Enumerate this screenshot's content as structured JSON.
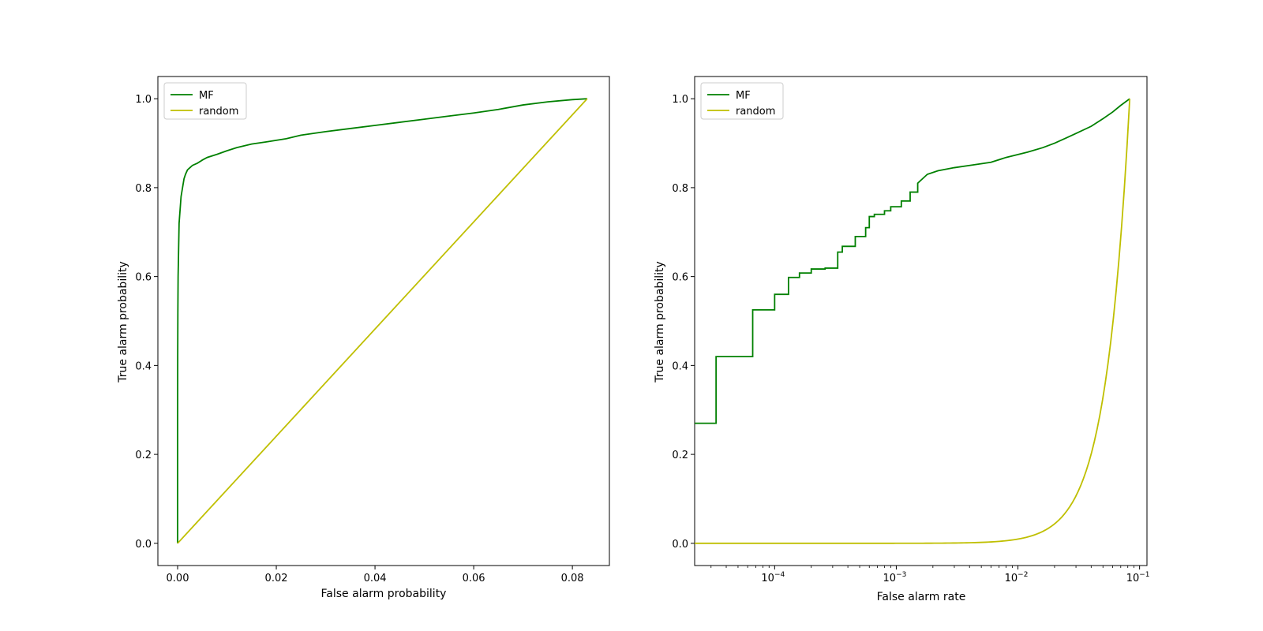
{
  "chart_data": [
    {
      "type": "line",
      "xlabel": "False alarm probability",
      "ylabel": "True alarm probability",
      "xscale": "linear",
      "xlim": [
        -0.004,
        0.0875
      ],
      "ylim": [
        -0.05,
        1.05
      ],
      "xticks": [
        0.0,
        0.02,
        0.04,
        0.06,
        0.08
      ],
      "xtick_labels": [
        "0.00",
        "0.02",
        "0.04",
        "0.06",
        "0.08"
      ],
      "yticks": [
        0.0,
        0.2,
        0.4,
        0.6,
        0.8,
        1.0
      ],
      "ytick_labels": [
        "0.0",
        "0.2",
        "0.4",
        "0.6",
        "0.8",
        "1.0"
      ],
      "legend": "top-left",
      "grid": false,
      "series": [
        {
          "name": "MF",
          "color": "#008000",
          "x": [
            0.0,
            0.0,
            2e-05,
            5e-05,
            0.0001,
            0.0002,
            0.0003,
            0.0005,
            0.0007,
            0.001,
            0.0013,
            0.0016,
            0.002,
            0.0025,
            0.003,
            0.004,
            0.005,
            0.006,
            0.008,
            0.01,
            0.012,
            0.015,
            0.018,
            0.022,
            0.025,
            0.03,
            0.035,
            0.04,
            0.045,
            0.05,
            0.055,
            0.06,
            0.065,
            0.07,
            0.075,
            0.08,
            0.083
          ],
          "y": [
            0.0,
            0.27,
            0.42,
            0.52,
            0.6,
            0.66,
            0.72,
            0.75,
            0.78,
            0.8,
            0.82,
            0.83,
            0.84,
            0.845,
            0.85,
            0.855,
            0.862,
            0.868,
            0.875,
            0.883,
            0.89,
            0.898,
            0.903,
            0.91,
            0.918,
            0.926,
            0.933,
            0.94,
            0.947,
            0.954,
            0.961,
            0.968,
            0.976,
            0.986,
            0.993,
            0.998,
            1.0
          ]
        },
        {
          "name": "random",
          "color": "#bfbf00",
          "x": [
            0.0,
            0.083
          ],
          "y": [
            0.0,
            1.0
          ]
        }
      ]
    },
    {
      "type": "line",
      "xlabel": "False alarm rate",
      "ylabel": "True alarm probability",
      "xscale": "log",
      "xlim": [
        2.2e-05,
        0.115
      ],
      "ylim": [
        -0.05,
        1.05
      ],
      "xticks": [
        0.0001,
        0.001,
        0.01,
        0.1
      ],
      "xtick_labels": [
        {
          "base": "10",
          "exp": "−4"
        },
        {
          "base": "10",
          "exp": "−3"
        },
        {
          "base": "10",
          "exp": "−2"
        },
        {
          "base": "10",
          "exp": "−1"
        }
      ],
      "yticks": [
        0.0,
        0.2,
        0.4,
        0.6,
        0.8,
        1.0
      ],
      "ytick_labels": [
        "0.0",
        "0.2",
        "0.4",
        "0.6",
        "0.8",
        "1.0"
      ],
      "legend": "top-left",
      "grid": false,
      "series": [
        {
          "name": "MF",
          "color": "#008000",
          "step": true,
          "x": [
            2.2e-05,
            3.3e-05,
            3.3e-05,
            6.6e-05,
            6.6e-05,
            0.0001,
            0.0001,
            0.00013,
            0.00013,
            0.00016,
            0.00016,
            0.0002,
            0.0002,
            0.00026,
            0.00026,
            0.00033,
            0.00033,
            0.00036,
            0.00036,
            0.00046,
            0.00046,
            0.00056,
            0.00056,
            0.0006,
            0.0006,
            0.00066,
            0.00066,
            0.0008,
            0.0008,
            0.0009,
            0.0009,
            0.0011,
            0.0011,
            0.0013,
            0.0013,
            0.0015,
            0.0015,
            0.0018,
            0.0022,
            0.003,
            0.004,
            0.006,
            0.008,
            0.012,
            0.016,
            0.02,
            0.025,
            0.03,
            0.04,
            0.05,
            0.06,
            0.07,
            0.083
          ],
          "y": [
            0.27,
            0.27,
            0.42,
            0.42,
            0.525,
            0.525,
            0.56,
            0.56,
            0.598,
            0.598,
            0.608,
            0.608,
            0.617,
            0.617,
            0.619,
            0.619,
            0.655,
            0.655,
            0.668,
            0.668,
            0.69,
            0.69,
            0.71,
            0.71,
            0.735,
            0.735,
            0.74,
            0.74,
            0.748,
            0.748,
            0.757,
            0.757,
            0.77,
            0.77,
            0.79,
            0.79,
            0.81,
            0.83,
            0.838,
            0.845,
            0.85,
            0.857,
            0.868,
            0.88,
            0.89,
            0.9,
            0.912,
            0.922,
            0.938,
            0.955,
            0.97,
            0.985,
            1.0
          ]
        },
        {
          "name": "random",
          "color": "#bfbf00",
          "function": "power",
          "exponent": 2.2,
          "x_end": 0.083
        }
      ]
    }
  ]
}
